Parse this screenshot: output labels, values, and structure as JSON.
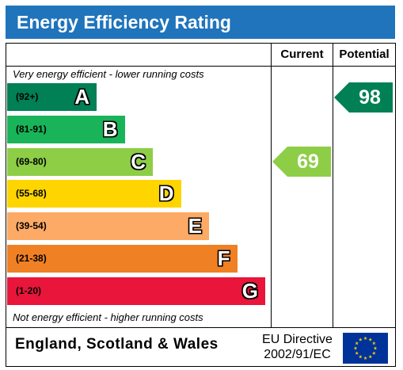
{
  "title": "Energy Efficiency Rating",
  "columns": {
    "current": "Current",
    "potential": "Potential"
  },
  "top_caption": "Very energy efficient - lower running costs",
  "bottom_caption": "Not energy efficient - higher running costs",
  "footer": {
    "region": "England, Scotland & Wales",
    "directive_line1": "EU Directive",
    "directive_line2": "2002/91/EC"
  },
  "chart_data": {
    "type": "bar",
    "categories": [
      "A",
      "B",
      "C",
      "D",
      "E",
      "F",
      "G"
    ],
    "ranges": [
      "(92+)",
      "(81-91)",
      "(69-80)",
      "(55-68)",
      "(39-54)",
      "(21-38)",
      "(1-20)"
    ],
    "colors": [
      "#008054",
      "#19b459",
      "#8dce46",
      "#ffd500",
      "#fcaa65",
      "#ef8023",
      "#e9153b"
    ],
    "current": {
      "value": 69,
      "band": "C",
      "color": "#8dce46"
    },
    "potential": {
      "value": 98,
      "band": "A",
      "color": "#008054"
    }
  }
}
